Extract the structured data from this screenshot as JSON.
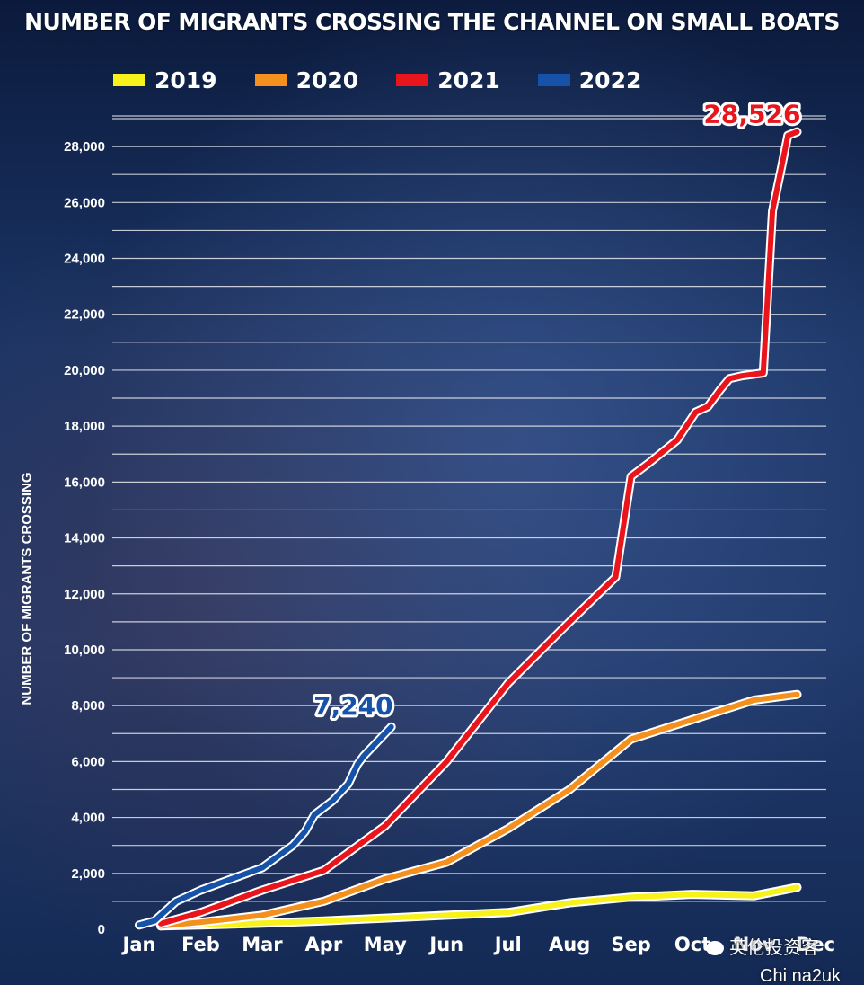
{
  "chart_data": {
    "type": "line",
    "title": "NUMBER OF MIGRANTS CROSSING THE CHANNEL ON SMALL BOATS",
    "ylabel": "NUMBER OF MIGRANTS CROSSING",
    "xlabel": "",
    "legend_position": "top",
    "grid": true,
    "ylim": [
      0,
      29000
    ],
    "xlim": [
      0,
      12
    ],
    "x_ticks": [
      "Jan",
      "Feb",
      "Mar",
      "Apr",
      "May",
      "Jun",
      "Jul",
      "Aug",
      "Sep",
      "Oct",
      "Nov",
      "Dec"
    ],
    "y_ticks": [
      0,
      2000,
      4000,
      6000,
      8000,
      10000,
      12000,
      14000,
      16000,
      18000,
      20000,
      22000,
      24000,
      26000,
      28000
    ],
    "y_tick_labels": [
      "0",
      "2,000",
      "4,000",
      "6,000",
      "8,000",
      "10,000",
      "12,000",
      "14,000",
      "16,000",
      "18,000",
      "20,000",
      "22,000",
      "24,000",
      "26,000",
      "28,000"
    ],
    "series": [
      {
        "name": "2019",
        "color": "#f7f21c",
        "x": [
          0.35,
          1,
          2,
          3,
          4,
          5,
          6,
          7,
          8,
          9,
          10,
          10.7
        ],
        "values": [
          120,
          150,
          220,
          300,
          400,
          500,
          600,
          950,
          1150,
          1250,
          1200,
          1500
        ]
      },
      {
        "name": "2020",
        "color": "#f4901e",
        "x": [
          0.35,
          1,
          2,
          3,
          4,
          5,
          6,
          7,
          8,
          9,
          10,
          10.7
        ],
        "values": [
          120,
          250,
          500,
          1000,
          1800,
          2400,
          3600,
          5000,
          6800,
          7500,
          8200,
          8400
        ]
      },
      {
        "name": "2021",
        "color": "#e8161c",
        "x": [
          0.35,
          1,
          2,
          3,
          4,
          5,
          6,
          7,
          7.75,
          8.0,
          8.3,
          8.75,
          9.05,
          9.25,
          9.45,
          9.6,
          9.8,
          10.15,
          10.3,
          10.45,
          10.55,
          10.7
        ],
        "values": [
          200,
          600,
          1400,
          2100,
          3700,
          6000,
          8800,
          11000,
          12600,
          16200,
          16700,
          17500,
          18500,
          18700,
          19300,
          19700,
          19800,
          19900,
          25700,
          27300,
          28400,
          28526
        ],
        "end_label": "28,526"
      },
      {
        "name": "2022",
        "color": "#1652a8",
        "x": [
          0,
          0.25,
          0.6,
          1,
          1.5,
          2,
          2.5,
          2.7,
          2.85,
          3.15,
          3.4,
          3.55,
          3.65,
          4.1
        ],
        "values": [
          150,
          300,
          1000,
          1400,
          1800,
          2200,
          3000,
          3500,
          4100,
          4600,
          5200,
          5900,
          6200,
          7240
        ],
        "end_label": "7,240"
      }
    ]
  },
  "watermark": {
    "text": "英伦投资客",
    "sub": "Chi na2uk"
  }
}
